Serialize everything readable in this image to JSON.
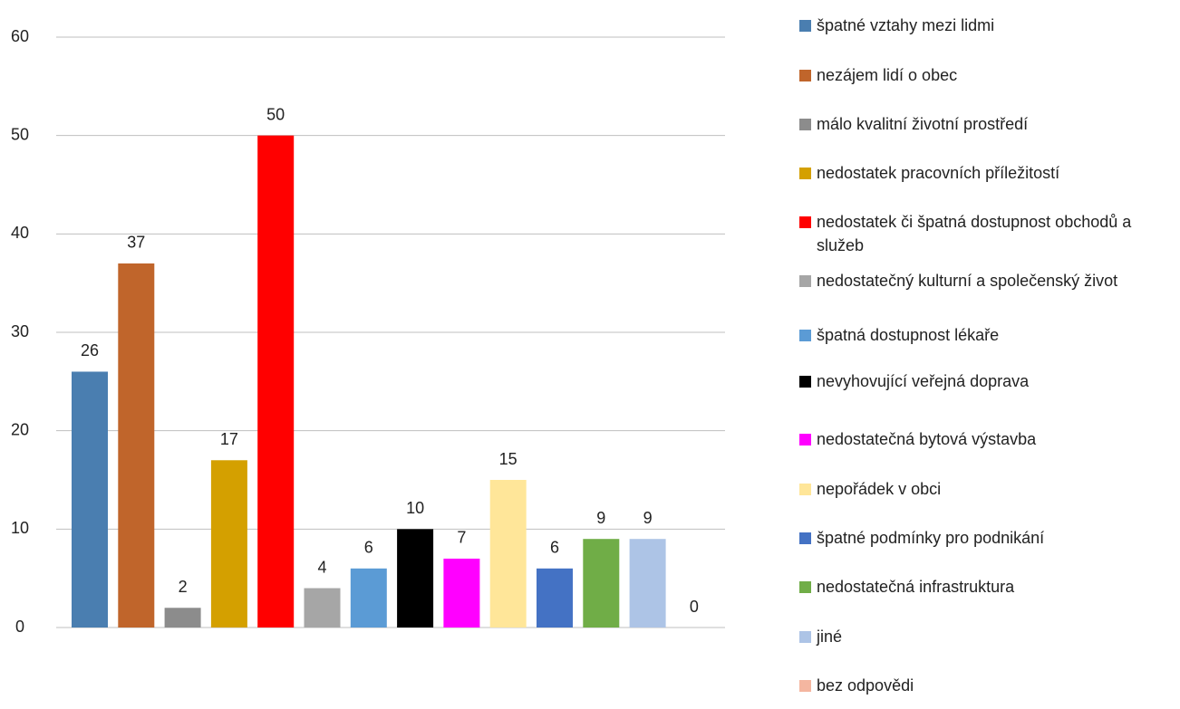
{
  "chart_data": {
    "type": "bar",
    "categories": [
      null
    ],
    "ylim": [
      0,
      60
    ],
    "yticks": [
      0,
      10,
      20,
      30,
      40,
      50,
      60
    ],
    "grid": true,
    "legend": "right",
    "series": [
      {
        "name": "špatné vztahy mezi lidmi",
        "color": "#4a7eb0",
        "values": [
          26
        ]
      },
      {
        "name": "nezájem lidí o obec",
        "color": "#c0652b",
        "values": [
          37
        ]
      },
      {
        "name": "málo kvalitní životní prostředí",
        "color": "#8c8c8c",
        "values": [
          2
        ]
      },
      {
        "name": "nedostatek pracovních příležitostí",
        "color": "#d4a000",
        "values": [
          17
        ]
      },
      {
        "name": "nedostatek či špatná dostupnost obchodů a služeb",
        "color": "#ff0000",
        "values": [
          50
        ]
      },
      {
        "name": "nedostatečný kulturní a společenský život",
        "color": "#a6a6a6",
        "values": [
          4
        ]
      },
      {
        "name": "špatná dostupnost lékaře",
        "color": "#5b9bd5",
        "values": [
          6
        ]
      },
      {
        "name": "nevyhovující veřejná doprava",
        "color": "#000000",
        "values": [
          10
        ]
      },
      {
        "name": "nedostatečná bytová výstavba",
        "color": "#ff00ff",
        "values": [
          7
        ]
      },
      {
        "name": "nepořádek v obci",
        "color": "#ffe699",
        "values": [
          15
        ]
      },
      {
        "name": "špatné podmínky pro podnikání",
        "color": "#4472c4",
        "values": [
          6
        ]
      },
      {
        "name": "nedostatečná infrastruktura",
        "color": "#70ad47",
        "values": [
          9
        ]
      },
      {
        "name": "jiné",
        "color": "#adc4e6",
        "values": [
          9
        ]
      },
      {
        "name": "bez odpovědi",
        "color": "#f4b6a0",
        "values": [
          0
        ]
      }
    ]
  }
}
